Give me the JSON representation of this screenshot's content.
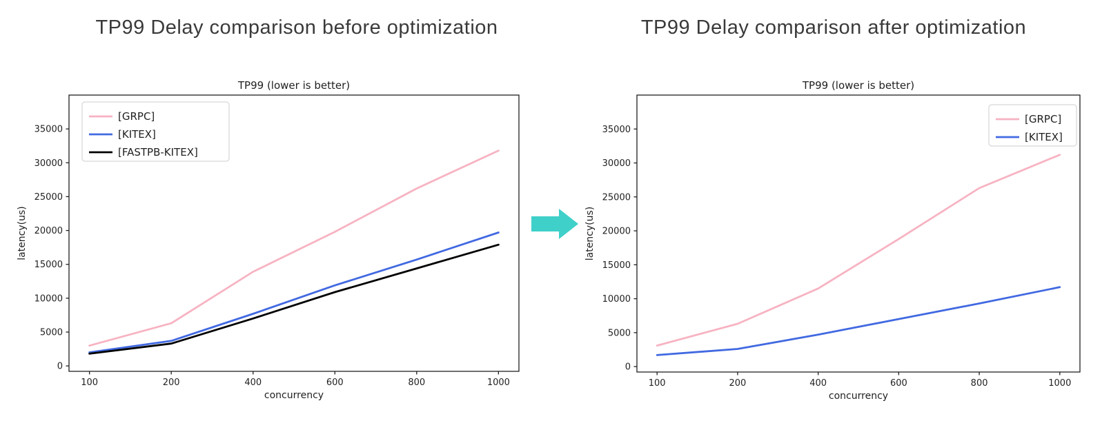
{
  "headings": {
    "before": "TP99 Delay comparison before optimization",
    "after": "TP99 Delay comparison after optimization"
  },
  "arrow": {
    "icon": "right-block-arrow",
    "color": "#3fd0c9"
  },
  "colors": {
    "grpc_pink": "#f7b3c2",
    "kitex_blue": "#4169e1",
    "fastpb_black": "#000000",
    "axis": "#1f1f1f",
    "heading_text": "#3a3a3a",
    "legend_border": "#cccccc"
  },
  "chart_data": [
    {
      "id": "before",
      "type": "line",
      "title": "TP99 (lower is better)",
      "xlabel": "concurrency",
      "ylabel": "latency(us)",
      "x_scale": "categorical",
      "categories": [
        "100",
        "200",
        "400",
        "600",
        "800",
        "1000"
      ],
      "series": [
        {
          "name": "[GRPC]",
          "color": "#f7b3c2",
          "values": [
            3000,
            6300,
            13900,
            19800,
            26200,
            31800
          ]
        },
        {
          "name": "[KITEX]",
          "color": "#4169e1",
          "values": [
            2000,
            3700,
            7700,
            11900,
            15700,
            19700
          ]
        },
        {
          "name": "[FASTPB-KITEX]",
          "color": "#000000",
          "values": [
            1800,
            3300,
            7000,
            10900,
            14400,
            17900
          ]
        }
      ],
      "yticks": [
        "0",
        "5000",
        "10000",
        "15000",
        "20000",
        "25000",
        "30000",
        "35000"
      ],
      "ytick_values": [
        0,
        5000,
        10000,
        15000,
        20000,
        25000,
        30000,
        35000
      ],
      "ylim": [
        -800,
        40000
      ],
      "grid": false,
      "legend_position": "upper-left"
    },
    {
      "id": "after",
      "type": "line",
      "title": "TP99 (lower is better)",
      "xlabel": "concurrency",
      "ylabel": "latency(us)",
      "x_scale": "categorical",
      "categories": [
        "100",
        "200",
        "400",
        "600",
        "800",
        "1000"
      ],
      "series": [
        {
          "name": "[GRPC]",
          "color": "#f7b3c2",
          "values": [
            3100,
            6300,
            11500,
            18800,
            26300,
            31200
          ]
        },
        {
          "name": "[KITEX]",
          "color": "#4169e1",
          "values": [
            1700,
            2600,
            4700,
            7000,
            9300,
            11700
          ]
        }
      ],
      "yticks": [
        "0",
        "5000",
        "10000",
        "15000",
        "20000",
        "25000",
        "30000",
        "35000"
      ],
      "ytick_values": [
        0,
        5000,
        10000,
        15000,
        20000,
        25000,
        30000,
        35000
      ],
      "ylim": [
        -800,
        40000
      ],
      "grid": false,
      "legend_position": "upper-right"
    }
  ]
}
